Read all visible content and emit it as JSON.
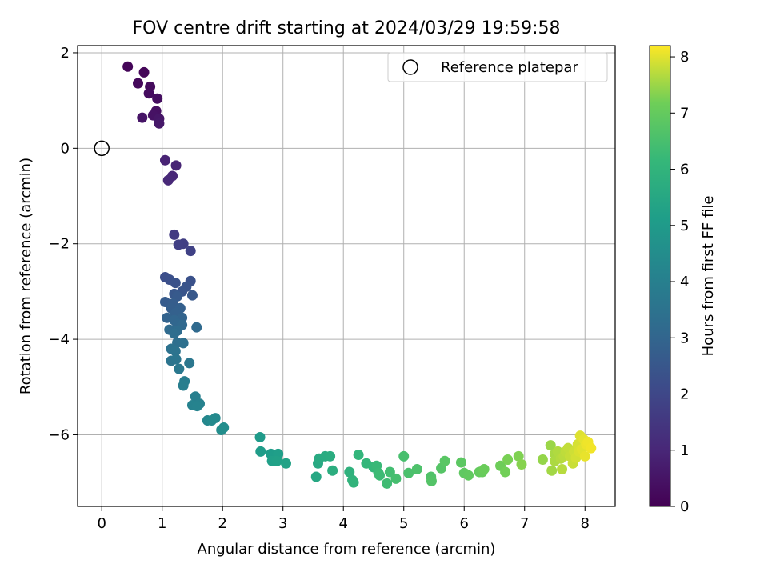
{
  "chart_data": {
    "type": "scatter",
    "title": "FOV centre drift starting at 2024/03/29 19:59:58",
    "xlabel": "Angular distance from reference (arcmin)",
    "ylabel": "Rotation from reference (arcmin)",
    "xlim": [
      -0.4,
      8.5
    ],
    "ylim": [
      -7.5,
      2.15
    ],
    "xticks": [
      0,
      1,
      2,
      3,
      4,
      5,
      6,
      7,
      8
    ],
    "yticks": [
      2,
      0,
      -2,
      -4,
      -6
    ],
    "ytick_labels": [
      "2",
      "0",
      "−2",
      "−4",
      "−6"
    ],
    "grid": true,
    "colormap": "viridis",
    "colorbar": {
      "label": "Hours from first FF file",
      "range": [
        0,
        8.2
      ],
      "ticks": [
        0,
        1,
        2,
        3,
        4,
        5,
        6,
        7,
        8
      ]
    },
    "legend": {
      "entries": [
        "Reference platepar"
      ],
      "position": "upper right"
    },
    "reference_point": {
      "x": 0,
      "y": 0,
      "label": "Reference platepar"
    },
    "series": [
      {
        "points": [
          {
            "x": 0.43,
            "y": 1.71,
            "c": 0.1
          },
          {
            "x": 0.7,
            "y": 1.59,
            "c": 0.15
          },
          {
            "x": 0.6,
            "y": 1.36,
            "c": 0.2
          },
          {
            "x": 0.8,
            "y": 1.29,
            "c": 0.25
          },
          {
            "x": 0.78,
            "y": 1.15,
            "c": 0.3
          },
          {
            "x": 0.92,
            "y": 1.04,
            "c": 0.35
          },
          {
            "x": 0.9,
            "y": 0.78,
            "c": 0.4
          },
          {
            "x": 0.85,
            "y": 0.69,
            "c": 0.45
          },
          {
            "x": 0.67,
            "y": 0.64,
            "c": 0.5
          },
          {
            "x": 0.95,
            "y": 0.62,
            "c": 0.55
          },
          {
            "x": 0.95,
            "y": 0.52,
            "c": 0.6
          },
          {
            "x": 1.05,
            "y": -0.25,
            "c": 0.9
          },
          {
            "x": 1.23,
            "y": -0.36,
            "c": 0.95
          },
          {
            "x": 1.17,
            "y": -0.58,
            "c": 1.0
          },
          {
            "x": 1.1,
            "y": -0.67,
            "c": 1.05
          },
          {
            "x": 1.2,
            "y": -1.81,
            "c": 1.6
          },
          {
            "x": 1.35,
            "y": -2.0,
            "c": 1.7
          },
          {
            "x": 1.27,
            "y": -2.02,
            "c": 1.75
          },
          {
            "x": 1.47,
            "y": -2.15,
            "c": 1.8
          },
          {
            "x": 1.05,
            "y": -2.7,
            "c": 2.2
          },
          {
            "x": 1.12,
            "y": -2.75,
            "c": 2.25
          },
          {
            "x": 1.47,
            "y": -2.78,
            "c": 2.3
          },
          {
            "x": 1.22,
            "y": -2.82,
            "c": 2.35
          },
          {
            "x": 1.4,
            "y": -2.9,
            "c": 2.4
          },
          {
            "x": 1.33,
            "y": -3.0,
            "c": 2.45
          },
          {
            "x": 1.2,
            "y": -3.05,
            "c": 2.5
          },
          {
            "x": 1.5,
            "y": -3.08,
            "c": 2.55
          },
          {
            "x": 1.25,
            "y": -3.1,
            "c": 2.6
          },
          {
            "x": 1.05,
            "y": -3.22,
            "c": 2.65
          },
          {
            "x": 1.18,
            "y": -3.25,
            "c": 2.7
          },
          {
            "x": 1.15,
            "y": -3.35,
            "c": 2.75
          },
          {
            "x": 1.3,
            "y": -3.35,
            "c": 2.8
          },
          {
            "x": 1.22,
            "y": -3.45,
            "c": 2.85
          },
          {
            "x": 1.08,
            "y": -3.55,
            "c": 2.9
          },
          {
            "x": 1.33,
            "y": -3.55,
            "c": 2.95
          },
          {
            "x": 1.2,
            "y": -3.6,
            "c": 3.0
          },
          {
            "x": 1.25,
            "y": -3.68,
            "c": 3.05
          },
          {
            "x": 1.33,
            "y": -3.7,
            "c": 3.1
          },
          {
            "x": 1.57,
            "y": -3.75,
            "c": 3.15
          },
          {
            "x": 1.12,
            "y": -3.8,
            "c": 3.2
          },
          {
            "x": 1.25,
            "y": -3.82,
            "c": 3.25
          },
          {
            "x": 1.2,
            "y": -3.88,
            "c": 3.3
          },
          {
            "x": 1.25,
            "y": -4.07,
            "c": 3.35
          },
          {
            "x": 1.35,
            "y": -4.08,
            "c": 3.4
          },
          {
            "x": 1.15,
            "y": -4.2,
            "c": 3.45
          },
          {
            "x": 1.22,
            "y": -4.25,
            "c": 3.5
          },
          {
            "x": 1.15,
            "y": -4.45,
            "c": 3.55
          },
          {
            "x": 1.23,
            "y": -4.42,
            "c": 3.6
          },
          {
            "x": 1.45,
            "y": -4.5,
            "c": 3.65
          },
          {
            "x": 1.28,
            "y": -4.62,
            "c": 3.7
          },
          {
            "x": 1.37,
            "y": -4.88,
            "c": 3.9
          },
          {
            "x": 1.35,
            "y": -4.97,
            "c": 3.95
          },
          {
            "x": 1.55,
            "y": -5.2,
            "c": 4.0
          },
          {
            "x": 1.62,
            "y": -5.35,
            "c": 4.05
          },
          {
            "x": 1.5,
            "y": -5.38,
            "c": 4.1
          },
          {
            "x": 1.58,
            "y": -5.4,
            "c": 4.15
          },
          {
            "x": 1.75,
            "y": -5.7,
            "c": 4.3
          },
          {
            "x": 1.88,
            "y": -5.65,
            "c": 4.35
          },
          {
            "x": 1.82,
            "y": -5.7,
            "c": 4.4
          },
          {
            "x": 2.02,
            "y": -5.85,
            "c": 4.5
          },
          {
            "x": 1.98,
            "y": -5.9,
            "c": 4.55
          },
          {
            "x": 2.62,
            "y": -6.05,
            "c": 5.0
          },
          {
            "x": 2.63,
            "y": -6.35,
            "c": 5.05
          },
          {
            "x": 2.8,
            "y": -6.4,
            "c": 5.1
          },
          {
            "x": 2.92,
            "y": -6.4,
            "c": 5.15
          },
          {
            "x": 2.82,
            "y": -6.55,
            "c": 5.2
          },
          {
            "x": 2.9,
            "y": -6.55,
            "c": 5.25
          },
          {
            "x": 3.05,
            "y": -6.6,
            "c": 5.3
          },
          {
            "x": 3.55,
            "y": -6.88,
            "c": 5.5
          },
          {
            "x": 3.58,
            "y": -6.6,
            "c": 5.55
          },
          {
            "x": 3.6,
            "y": -6.5,
            "c": 5.6
          },
          {
            "x": 3.7,
            "y": -6.45,
            "c": 5.65
          },
          {
            "x": 3.78,
            "y": -6.45,
            "c": 5.7
          },
          {
            "x": 3.82,
            "y": -6.75,
            "c": 5.75
          },
          {
            "x": 4.1,
            "y": -6.78,
            "c": 5.9
          },
          {
            "x": 4.15,
            "y": -6.95,
            "c": 5.95
          },
          {
            "x": 4.17,
            "y": -7.0,
            "c": 6.0
          },
          {
            "x": 4.25,
            "y": -6.42,
            "c": 6.05
          },
          {
            "x": 4.38,
            "y": -6.6,
            "c": 6.1
          },
          {
            "x": 4.5,
            "y": -6.68,
            "c": 6.15
          },
          {
            "x": 4.55,
            "y": -6.65,
            "c": 6.2
          },
          {
            "x": 4.58,
            "y": -6.8,
            "c": 6.25
          },
          {
            "x": 4.6,
            "y": -6.85,
            "c": 6.3
          },
          {
            "x": 4.72,
            "y": -7.02,
            "c": 6.35
          },
          {
            "x": 4.77,
            "y": -6.78,
            "c": 6.4
          },
          {
            "x": 4.87,
            "y": -6.92,
            "c": 6.45
          },
          {
            "x": 5.0,
            "y": -6.45,
            "c": 6.5
          },
          {
            "x": 5.08,
            "y": -6.8,
            "c": 6.55
          },
          {
            "x": 5.22,
            "y": -6.72,
            "c": 6.6
          },
          {
            "x": 5.45,
            "y": -6.88,
            "c": 6.65
          },
          {
            "x": 5.46,
            "y": -6.97,
            "c": 6.7
          },
          {
            "x": 5.62,
            "y": -6.7,
            "c": 6.75
          },
          {
            "x": 5.68,
            "y": -6.55,
            "c": 6.8
          },
          {
            "x": 5.95,
            "y": -6.58,
            "c": 6.85
          },
          {
            "x": 6.0,
            "y": -6.8,
            "c": 6.9
          },
          {
            "x": 6.07,
            "y": -6.85,
            "c": 6.95
          },
          {
            "x": 6.25,
            "y": -6.78,
            "c": 7.0
          },
          {
            "x": 6.3,
            "y": -6.78,
            "c": 7.05
          },
          {
            "x": 6.33,
            "y": -6.72,
            "c": 7.1
          },
          {
            "x": 6.6,
            "y": -6.65,
            "c": 7.15
          },
          {
            "x": 6.68,
            "y": -6.78,
            "c": 7.2
          },
          {
            "x": 6.72,
            "y": -6.52,
            "c": 7.25
          },
          {
            "x": 6.9,
            "y": -6.45,
            "c": 7.3
          },
          {
            "x": 6.95,
            "y": -6.62,
            "c": 7.35
          },
          {
            "x": 7.3,
            "y": -6.52,
            "c": 7.45
          },
          {
            "x": 7.43,
            "y": -6.22,
            "c": 7.5
          },
          {
            "x": 7.45,
            "y": -6.75,
            "c": 7.55
          },
          {
            "x": 7.5,
            "y": -6.4,
            "c": 7.6
          },
          {
            "x": 7.5,
            "y": -6.55,
            "c": 7.62
          },
          {
            "x": 7.55,
            "y": -6.35,
            "c": 7.65
          },
          {
            "x": 7.6,
            "y": -6.5,
            "c": 7.68
          },
          {
            "x": 7.62,
            "y": -6.72,
            "c": 7.7
          },
          {
            "x": 7.65,
            "y": -6.45,
            "c": 7.72
          },
          {
            "x": 7.68,
            "y": -6.35,
            "c": 7.75
          },
          {
            "x": 7.72,
            "y": -6.28,
            "c": 7.78
          },
          {
            "x": 7.75,
            "y": -6.45,
            "c": 7.8
          },
          {
            "x": 7.8,
            "y": -6.6,
            "c": 7.83
          },
          {
            "x": 7.82,
            "y": -6.35,
            "c": 7.86
          },
          {
            "x": 7.85,
            "y": -6.48,
            "c": 7.9
          },
          {
            "x": 7.88,
            "y": -6.2,
            "c": 7.92
          },
          {
            "x": 7.9,
            "y": -6.35,
            "c": 7.95
          },
          {
            "x": 7.92,
            "y": -6.02,
            "c": 7.97
          },
          {
            "x": 7.95,
            "y": -6.3,
            "c": 8.0
          },
          {
            "x": 7.98,
            "y": -6.1,
            "c": 8.02
          },
          {
            "x": 8.0,
            "y": -6.45,
            "c": 8.05
          },
          {
            "x": 8.02,
            "y": -6.2,
            "c": 8.08
          },
          {
            "x": 8.05,
            "y": -6.15,
            "c": 8.1
          },
          {
            "x": 8.1,
            "y": -6.28,
            "c": 8.12
          }
        ]
      }
    ]
  }
}
